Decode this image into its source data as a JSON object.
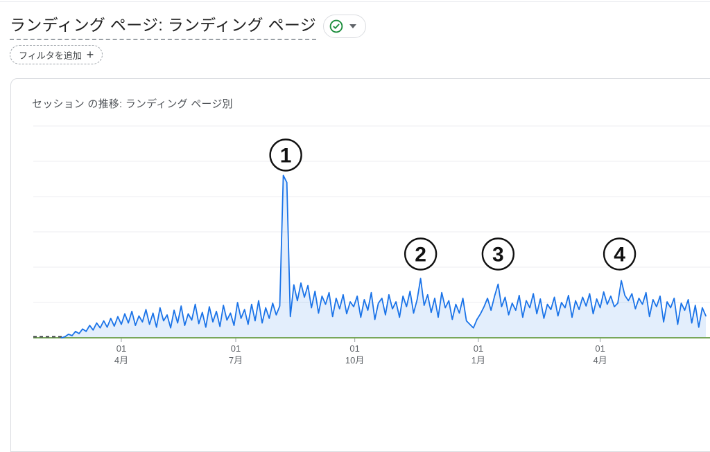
{
  "header": {
    "report_title": "ランディング ページ: ランディング ページ",
    "add_filter": {
      "label": "フィルタを追加",
      "plus": "+"
    }
  },
  "card": {
    "title": "セッション の推移: ランディング ページ別"
  },
  "colors": {
    "line_blue": "#1a73e8",
    "area_fill": "rgba(26,115,232,0.12)",
    "axis_green": "#78a75b",
    "gridline": "#eceef0",
    "axis_label": "#5f6368",
    "tick_mark": "#9aa0a6",
    "annotation_ink": "#111111",
    "dashed_zero": "#3c4043",
    "check_green": "#1e8e3e"
  },
  "chart_data": {
    "type": "line",
    "title": "セッション の推移: ランディング ページ別",
    "xlabel": "",
    "ylabel": "",
    "y_axis": {
      "labels_visible": false,
      "gridline_step": 100,
      "gridline_values": [
        100,
        200,
        300,
        400,
        500,
        600
      ],
      "ylim": [
        0,
        620
      ]
    },
    "legend": "none",
    "x_ticks": [
      {
        "label_top": "01",
        "label_bottom": "4月",
        "index": 25
      },
      {
        "label_top": "01",
        "label_bottom": "7月",
        "index": 57.5
      },
      {
        "label_top": "01",
        "label_bottom": "10月",
        "index": 91.3
      },
      {
        "label_top": "01",
        "label_bottom": "1月",
        "index": 126.4
      },
      {
        "label_top": "01",
        "label_bottom": "4月",
        "index": 161
      }
    ],
    "series": [
      {
        "name": "セッション",
        "leading_dashed_zero_points": 9,
        "values": [
          0,
          0,
          0,
          0,
          0,
          0,
          0,
          0,
          0,
          3,
          10,
          6,
          18,
          12,
          25,
          18,
          35,
          22,
          42,
          28,
          48,
          30,
          55,
          33,
          60,
          38,
          68,
          42,
          75,
          35,
          62,
          45,
          80,
          38,
          70,
          30,
          85,
          48,
          65,
          28,
          78,
          42,
          90,
          35,
          68,
          50,
          95,
          40,
          72,
          30,
          88,
          45,
          75,
          32,
          92,
          50,
          70,
          35,
          100,
          55,
          80,
          38,
          95,
          48,
          105,
          42,
          85,
          55,
          98,
          65,
          90,
          460,
          440,
          60,
          150,
          105,
          155,
          115,
          148,
          85,
          132,
          70,
          118,
          95,
          128,
          60,
          112,
          82,
          122,
          68,
          102,
          88,
          118,
          58,
          108,
          78,
          128,
          52,
          98,
          112,
          65,
          122,
          82,
          102,
          58,
          118,
          88,
          132,
          70,
          108,
          168,
          92,
          122,
          72,
          112,
          58,
          128,
          85,
          105,
          52,
          95,
          70,
          112,
          48,
          38,
          28,
          52,
          68,
          88,
          112,
          78,
          118,
          152,
          88,
          115,
          65,
          98,
          78,
          120,
          58,
          105,
          85,
          125,
          68,
          110,
          55,
          95,
          80,
          115,
          62,
          100,
          85,
          120,
          58,
          105,
          80,
          115,
          90,
          125,
          68,
          110,
          85,
          130,
          95,
          118,
          88,
          98,
          162,
          120,
          105,
          125,
          82,
          112,
          95,
          128,
          60,
          108,
          88,
          118,
          45,
          102,
          85,
          112,
          38,
          98,
          78,
          108,
          42,
          92,
          30,
          85,
          62
        ]
      }
    ],
    "baseline": {
      "value": 0,
      "color": "#78a75b"
    },
    "annotations": [
      {
        "label": "1",
        "index": 71.7,
        "cy": 224
      },
      {
        "label": "2",
        "index": 110,
        "cy": 367
      },
      {
        "label": "3",
        "index": 132,
        "cy": 367
      },
      {
        "label": "4",
        "index": 166.5,
        "cy": 367
      }
    ]
  }
}
